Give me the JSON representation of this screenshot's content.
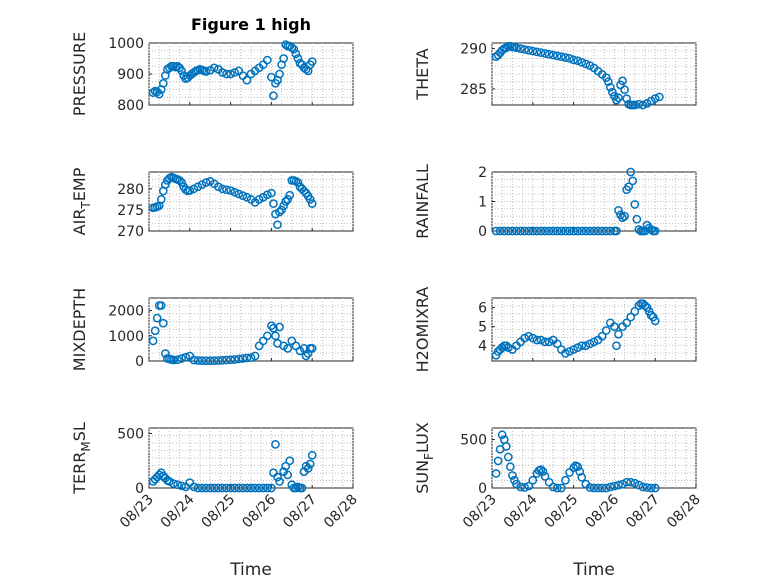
{
  "figure_title": "Figure 1 high",
  "colors": {
    "marker": "#0072bd",
    "axis": "#262626"
  },
  "x_ticks": [
    "08/23",
    "08/24",
    "08/25",
    "08/26",
    "08/27",
    "08/28"
  ],
  "x_label": "Time",
  "chart_data": [
    {
      "type": "scatter",
      "id": "pressure",
      "ylabel": "PRESSURE",
      "ylim": [
        800,
        1000
      ],
      "yticks": [
        800,
        900,
        1000
      ],
      "xlim": [
        0,
        5
      ],
      "grid": true,
      "x": [
        0.1,
        0.15,
        0.2,
        0.25,
        0.3,
        0.35,
        0.4,
        0.45,
        0.5,
        0.55,
        0.6,
        0.65,
        0.7,
        0.75,
        0.8,
        0.85,
        0.9,
        0.95,
        1.0,
        1.05,
        1.1,
        1.15,
        1.2,
        1.25,
        1.3,
        1.35,
        1.4,
        1.5,
        1.6,
        1.7,
        1.8,
        1.9,
        2.0,
        2.1,
        2.2,
        2.3,
        2.4,
        2.5,
        2.6,
        2.7,
        2.8,
        2.9,
        3.0,
        3.05,
        3.1,
        3.15,
        3.2,
        3.25,
        3.3,
        3.35,
        3.4,
        3.45,
        3.5,
        3.55,
        3.6,
        3.65,
        3.7,
        3.75,
        3.8,
        3.85,
        3.9,
        3.95,
        4.0
      ],
      "y": [
        840,
        845,
        842,
        835,
        850,
        870,
        895,
        915,
        920,
        925,
        925,
        922,
        925,
        920,
        910,
        895,
        885,
        888,
        895,
        900,
        905,
        910,
        912,
        915,
        913,
        910,
        908,
        912,
        920,
        915,
        905,
        900,
        900,
        905,
        910,
        895,
        880,
        900,
        910,
        920,
        930,
        945,
        890,
        830,
        870,
        880,
        900,
        930,
        950,
        995,
        990,
        990,
        985,
        980,
        965,
        950,
        935,
        930,
        920,
        915,
        910,
        930,
        940
      ]
    },
    {
      "type": "scatter",
      "id": "theta",
      "ylabel": "THETA",
      "ylim": [
        283,
        290.7
      ],
      "yticks": [
        285,
        290
      ],
      "xlim": [
        0,
        5
      ],
      "grid": true,
      "x": [
        0.1,
        0.15,
        0.2,
        0.25,
        0.3,
        0.35,
        0.4,
        0.45,
        0.5,
        0.55,
        0.6,
        0.7,
        0.8,
        0.9,
        1.0,
        1.1,
        1.2,
        1.3,
        1.4,
        1.5,
        1.6,
        1.7,
        1.8,
        1.9,
        2.0,
        2.1,
        2.2,
        2.3,
        2.4,
        2.5,
        2.6,
        2.7,
        2.8,
        2.85,
        2.9,
        2.95,
        3.0,
        3.05,
        3.1,
        3.15,
        3.2,
        3.25,
        3.3,
        3.35,
        3.4,
        3.45,
        3.5,
        3.6,
        3.7,
        3.8,
        3.9,
        4.0,
        4.1
      ],
      "y": [
        289.0,
        289.2,
        289.5,
        289.8,
        290.0,
        290.1,
        290.3,
        290.3,
        290.2,
        290.2,
        290.1,
        290.0,
        289.9,
        289.8,
        289.7,
        289.6,
        289.5,
        289.4,
        289.3,
        289.2,
        289.1,
        289.0,
        288.9,
        288.8,
        288.6,
        288.5,
        288.3,
        288.1,
        287.9,
        287.6,
        287.2,
        286.8,
        286.4,
        285.9,
        285.2,
        284.6,
        284.1,
        283.6,
        283.9,
        285.5,
        286.0,
        284.9,
        283.8,
        283.1,
        283.0,
        283.0,
        283.0,
        283.1,
        283.0,
        283.2,
        283.5,
        283.8,
        284.0
      ]
    },
    {
      "type": "scatter",
      "id": "air_temp",
      "ylabel": "AIR_TEMP",
      "ylim": [
        270,
        284
      ],
      "yticks": [
        270,
        275,
        280
      ],
      "xlim": [
        0,
        5
      ],
      "grid": true,
      "x": [
        0.1,
        0.15,
        0.2,
        0.25,
        0.3,
        0.35,
        0.4,
        0.45,
        0.5,
        0.55,
        0.6,
        0.65,
        0.7,
        0.75,
        0.8,
        0.85,
        0.9,
        0.95,
        1.0,
        1.1,
        1.2,
        1.3,
        1.4,
        1.5,
        1.6,
        1.7,
        1.8,
        1.9,
        2.0,
        2.1,
        2.2,
        2.3,
        2.4,
        2.5,
        2.6,
        2.7,
        2.8,
        2.9,
        3.0,
        3.05,
        3.1,
        3.15,
        3.2,
        3.25,
        3.3,
        3.35,
        3.4,
        3.45,
        3.5,
        3.55,
        3.6,
        3.65,
        3.7,
        3.75,
        3.8,
        3.85,
        3.9,
        3.95,
        4.0
      ],
      "y": [
        275.5,
        275.6,
        275.8,
        276.0,
        277.5,
        279.5,
        281.0,
        282.0,
        282.5,
        282.8,
        282.6,
        282.4,
        282.2,
        282.0,
        281.5,
        280.5,
        279.8,
        279.5,
        279.6,
        280.0,
        280.5,
        281.0,
        281.5,
        281.8,
        281.2,
        280.5,
        280.0,
        279.8,
        279.6,
        279.2,
        278.8,
        278.4,
        278.0,
        277.5,
        276.8,
        277.5,
        278.0,
        278.6,
        279.0,
        276.5,
        274.0,
        271.5,
        274.5,
        275.0,
        276.0,
        277.0,
        277.5,
        278.5,
        282.0,
        282.0,
        281.8,
        281.5,
        280.5,
        280.0,
        279.5,
        279.0,
        278.3,
        277.5,
        276.5
      ]
    },
    {
      "type": "scatter",
      "id": "rainfall",
      "ylabel": "RAINFALL",
      "ylim": [
        0,
        2
      ],
      "yticks": [
        0,
        1,
        2
      ],
      "xlim": [
        0,
        5
      ],
      "grid": true,
      "x": [
        0.1,
        0.2,
        0.3,
        0.4,
        0.5,
        0.6,
        0.7,
        0.8,
        0.9,
        1.0,
        1.1,
        1.2,
        1.3,
        1.4,
        1.5,
        1.6,
        1.7,
        1.8,
        1.9,
        2.0,
        2.1,
        2.2,
        2.3,
        2.4,
        2.5,
        2.6,
        2.7,
        2.8,
        2.9,
        3.0,
        3.05,
        3.1,
        3.15,
        3.2,
        3.25,
        3.3,
        3.35,
        3.4,
        3.45,
        3.5,
        3.55,
        3.6,
        3.65,
        3.7,
        3.75,
        3.8,
        3.85,
        3.9,
        3.95,
        4.0
      ],
      "y": [
        0,
        0,
        0,
        0,
        0,
        0,
        0,
        0,
        0,
        0,
        0,
        0,
        0,
        0,
        0,
        0,
        0,
        0,
        0,
        0,
        0,
        0,
        0,
        0,
        0,
        0,
        0,
        0,
        0,
        0,
        0,
        0.7,
        0.55,
        0.45,
        0.5,
        1.4,
        1.5,
        2.0,
        1.7,
        0.9,
        0.4,
        0.05,
        0,
        0,
        0,
        0.2,
        0.1,
        0.05,
        0,
        0
      ]
    },
    {
      "type": "scatter",
      "id": "mixdepth",
      "ylabel": "MIXDEPTH",
      "ylim": [
        0,
        2500
      ],
      "yticks": [
        0,
        1000,
        2000
      ],
      "xlim": [
        0,
        5
      ],
      "grid": true,
      "x": [
        0.1,
        0.15,
        0.2,
        0.25,
        0.3,
        0.35,
        0.4,
        0.45,
        0.5,
        0.55,
        0.6,
        0.7,
        0.8,
        0.9,
        1.0,
        1.1,
        1.2,
        1.3,
        1.4,
        1.5,
        1.6,
        1.7,
        1.8,
        1.9,
        2.0,
        2.1,
        2.2,
        2.3,
        2.4,
        2.5,
        2.6,
        2.7,
        2.8,
        2.9,
        3.0,
        3.05,
        3.1,
        3.15,
        3.2,
        3.3,
        3.4,
        3.5,
        3.6,
        3.7,
        3.8,
        3.85,
        3.9,
        3.95,
        4.0
      ],
      "y": [
        800,
        1200,
        1700,
        2200,
        2200,
        1500,
        300,
        100,
        80,
        60,
        40,
        50,
        100,
        150,
        200,
        40,
        20,
        15,
        10,
        10,
        15,
        20,
        30,
        40,
        50,
        60,
        80,
        100,
        120,
        130,
        200,
        600,
        800,
        1000,
        1400,
        1300,
        1000,
        700,
        1350,
        600,
        500,
        800,
        600,
        400,
        500,
        200,
        300,
        500,
        500
      ]
    },
    {
      "type": "scatter",
      "id": "h2omixra",
      "ylabel": "H2OMIXRA",
      "ylim": [
        3.2,
        6.5
      ],
      "yticks": [
        4,
        5,
        6
      ],
      "xlim": [
        0,
        5
      ],
      "grid": true,
      "x": [
        0.1,
        0.15,
        0.2,
        0.25,
        0.3,
        0.35,
        0.4,
        0.5,
        0.6,
        0.7,
        0.8,
        0.9,
        1.0,
        1.1,
        1.2,
        1.3,
        1.4,
        1.5,
        1.6,
        1.7,
        1.8,
        1.9,
        2.0,
        2.1,
        2.2,
        2.3,
        2.4,
        2.5,
        2.6,
        2.7,
        2.8,
        2.9,
        3.0,
        3.05,
        3.1,
        3.2,
        3.3,
        3.4,
        3.5,
        3.6,
        3.65,
        3.7,
        3.75,
        3.8,
        3.85,
        3.9,
        3.95,
        4.0
      ],
      "y": [
        3.5,
        3.7,
        3.8,
        3.9,
        4.0,
        4.0,
        3.9,
        3.8,
        4.0,
        4.2,
        4.4,
        4.5,
        4.4,
        4.3,
        4.3,
        4.2,
        4.2,
        4.3,
        4.1,
        3.8,
        3.6,
        3.7,
        3.8,
        3.9,
        4.0,
        4.0,
        4.1,
        4.2,
        4.3,
        4.5,
        4.8,
        5.2,
        5.0,
        4.0,
        4.6,
        5.0,
        5.2,
        5.5,
        5.8,
        6.1,
        6.2,
        6.2,
        6.1,
        6.0,
        5.8,
        5.6,
        5.5,
        5.3
      ]
    },
    {
      "type": "scatter",
      "id": "terr_msl",
      "ylabel": "TERR_MSL",
      "ylim": [
        0,
        550
      ],
      "yticks": [
        0,
        500
      ],
      "xlim": [
        0,
        5
      ],
      "grid": true,
      "x": [
        0.1,
        0.15,
        0.2,
        0.25,
        0.3,
        0.35,
        0.4,
        0.45,
        0.5,
        0.6,
        0.7,
        0.8,
        0.9,
        1.0,
        1.1,
        1.2,
        1.3,
        1.4,
        1.5,
        1.6,
        1.7,
        1.8,
        1.9,
        2.0,
        2.1,
        2.2,
        2.3,
        2.4,
        2.5,
        2.6,
        2.7,
        2.8,
        2.9,
        3.0,
        3.05,
        3.1,
        3.15,
        3.2,
        3.3,
        3.35,
        3.4,
        3.45,
        3.5,
        3.55,
        3.6,
        3.65,
        3.7,
        3.75,
        3.8,
        3.85,
        3.9,
        3.95,
        4.0
      ],
      "y": [
        60,
        80,
        100,
        120,
        140,
        110,
        90,
        70,
        60,
        40,
        30,
        20,
        10,
        50,
        10,
        0,
        0,
        0,
        0,
        0,
        0,
        0,
        0,
        0,
        0,
        0,
        0,
        0,
        0,
        0,
        0,
        0,
        0,
        0,
        140,
        400,
        100,
        60,
        150,
        200,
        120,
        250,
        30,
        0,
        0,
        10,
        0,
        0,
        150,
        200,
        180,
        220,
        300
      ]
    },
    {
      "type": "scatter",
      "id": "sun_flux",
      "ylabel": "SUN_FLUX",
      "ylim": [
        0,
        620
      ],
      "yticks": [
        0,
        500
      ],
      "xlim": [
        0,
        5
      ],
      "grid": true,
      "x": [
        0.1,
        0.15,
        0.2,
        0.25,
        0.3,
        0.35,
        0.4,
        0.45,
        0.5,
        0.55,
        0.6,
        0.7,
        0.8,
        0.9,
        1.0,
        1.1,
        1.15,
        1.2,
        1.25,
        1.3,
        1.4,
        1.5,
        1.6,
        1.7,
        1.8,
        1.9,
        2.0,
        2.05,
        2.1,
        2.15,
        2.2,
        2.3,
        2.4,
        2.5,
        2.6,
        2.7,
        2.8,
        2.9,
        3.0,
        3.1,
        3.2,
        3.3,
        3.4,
        3.5,
        3.6,
        3.7,
        3.8,
        3.9,
        4.0
      ],
      "y": [
        150,
        280,
        400,
        550,
        500,
        430,
        320,
        220,
        130,
        80,
        40,
        10,
        5,
        20,
        80,
        150,
        180,
        190,
        170,
        120,
        60,
        10,
        0,
        0,
        80,
        160,
        210,
        230,
        220,
        170,
        110,
        40,
        5,
        0,
        0,
        0,
        0,
        10,
        20,
        30,
        40,
        60,
        60,
        50,
        30,
        10,
        5,
        0,
        0
      ]
    }
  ]
}
